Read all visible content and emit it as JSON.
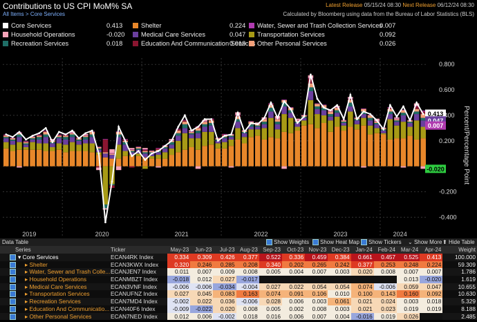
{
  "header": {
    "title": "Contributions to US CPI MoM% SA",
    "breadcrumb_root": "All Items",
    "breadcrumb_sep": ">",
    "breadcrumb_leaf": "Core Services",
    "latest_label": "Latest Release",
    "latest_value": "05/15/24 08:30",
    "next_label": "Next Release",
    "next_value": "06/12/24 08:30",
    "calc_note": "Calculated by Bloomberg using data from the Bureau of Labor Statistics (BLS)"
  },
  "colors": {
    "core": "#ffffff",
    "shelter": "#e8872a",
    "water": "#b03bb0",
    "household": "#f6a3b8",
    "medical": "#6a3f9e",
    "transport": "#a79a16",
    "recreation": "#1f6e66",
    "education": "#8a1530",
    "personal": "#f3a07a",
    "callout_green": "#2ecc40"
  },
  "legend": [
    {
      "label": "Core Services",
      "value": "0.413",
      "color": "#ffffff"
    },
    {
      "label": "Shelter",
      "value": "0.224",
      "color": "#e8872a"
    },
    {
      "label": "Water, Sewer and Trash Collection Services",
      "value": "0.007",
      "color": "#b03bb0"
    },
    {
      "label": "Household Operations",
      "value": "-0.020",
      "color": "#f6a3b8"
    },
    {
      "label": "Medical Care Services",
      "value": "0.047",
      "color": "#6a3f9e"
    },
    {
      "label": "Transportation Services",
      "value": "0.092",
      "color": "#a79a16"
    },
    {
      "label": "Recreation Services",
      "value": "0.018",
      "color": "#1f6e66"
    },
    {
      "label": "Education And Communication Services",
      "value": "0.019",
      "color": "#8a1530"
    },
    {
      "label": "Other Personal Services",
      "value": "0.026",
      "color": "#f3a07a"
    }
  ],
  "chart_data": {
    "type": "bar",
    "stacked": true,
    "ylabel": "Percent/Percentage Point",
    "ylim": [
      -0.55,
      0.85
    ],
    "yticks": [
      "0.800",
      "0.600",
      "0.400",
      "0.200",
      "-0.200",
      "-0.400"
    ],
    "year_labels": [
      "2019",
      "2020",
      "2021",
      "2022",
      "2023",
      "2024"
    ],
    "callouts": [
      "0.413",
      "0.047",
      "0.007",
      "-0.020"
    ],
    "n_bars": 64,
    "core_line": [
      0.25,
      0.23,
      0.27,
      0.21,
      0.24,
      0.26,
      0.3,
      0.19,
      0.27,
      0.25,
      0.28,
      0.22,
      0.26,
      0.28,
      0.1,
      -0.44,
      -0.12,
      0.31,
      0.2,
      0.08,
      0.12,
      0.05,
      0.1,
      0.12,
      0.16,
      0.2,
      0.31,
      0.4,
      0.28,
      0.31,
      0.37,
      0.37,
      0.2,
      0.24,
      0.25,
      0.42,
      0.27,
      0.34,
      0.33,
      0.38,
      0.5,
      0.38,
      0.51,
      0.45,
      0.34,
      0.39,
      0.72,
      0.53,
      0.46,
      0.44,
      0.48,
      0.37,
      0.56,
      0.37,
      0.43,
      0.41,
      0.36,
      0.29,
      0.48,
      0.39,
      0.47,
      0.36,
      0.5,
      0.41
    ],
    "shelter": [
      0.14,
      0.12,
      0.13,
      0.13,
      0.13,
      0.13,
      0.12,
      0.12,
      0.13,
      0.11,
      0.12,
      0.12,
      0.12,
      0.11,
      0.09,
      0.07,
      0.06,
      0.06,
      0.08,
      0.08,
      0.08,
      0.07,
      0.06,
      0.06,
      0.06,
      0.09,
      0.11,
      0.13,
      0.15,
      0.13,
      0.16,
      0.17,
      0.14,
      0.14,
      0.16,
      0.21,
      0.18,
      0.23,
      0.24,
      0.21,
      0.23,
      0.22,
      0.27,
      0.26,
      0.28,
      0.32,
      0.33,
      0.3,
      0.34,
      0.27,
      0.31,
      0.28,
      0.31,
      0.29,
      0.32,
      0.25,
      0.26,
      0.25,
      0.21,
      0.22,
      0.22,
      0.24,
      0.21,
      0.22
    ],
    "transport": [
      0.05,
      0.05,
      0.06,
      0.02,
      0.06,
      0.05,
      0.06,
      0.03,
      0.05,
      0.06,
      0.07,
      0.05,
      0.06,
      0.07,
      0.02,
      -0.3,
      -0.14,
      0.11,
      0.04,
      0.01,
      0.02,
      -0.02,
      0.02,
      0.03,
      0.05,
      0.05,
      0.09,
      0.13,
      0.07,
      0.09,
      0.11,
      0.1,
      0.04,
      0.05,
      0.05,
      0.09,
      0.05,
      0.06,
      0.05,
      0.09,
      0.15,
      0.07,
      0.14,
      0.12,
      0.03,
      0.04,
      0.19,
      0.11,
      0.06,
      0.09,
      0.08,
      0.04,
      0.12,
      0.04,
      0.06,
      0.07,
      0.04,
      0.01,
      0.16,
      0.1,
      0.13,
      0.07,
      0.15,
      0.09
    ],
    "medical": [
      0.03,
      0.03,
      0.04,
      0.02,
      0.02,
      0.03,
      0.05,
      0.03,
      0.04,
      0.04,
      0.04,
      0.03,
      0.03,
      0.05,
      0.02,
      0.03,
      0.03,
      0.06,
      0.05,
      0.02,
      0.03,
      0.03,
      0.02,
      0.02,
      0.03,
      0.03,
      0.04,
      0.04,
      0.03,
      0.04,
      0.04,
      0.05,
      0.02,
      0.03,
      0.02,
      0.05,
      0.03,
      0.02,
      0.02,
      0.03,
      0.05,
      0.04,
      0.06,
      0.04,
      0.03,
      0.02,
      0.07,
      0.04,
      0.04,
      0.03,
      0.03,
      0.02,
      0.04,
      0.03,
      0.03,
      0.04,
      0.03,
      0.02,
      0.04,
      0.03,
      0.05,
      0.03,
      0.05,
      0.05
    ],
    "recreation": [
      0.01,
      0.01,
      0.02,
      0.01,
      0.01,
      0.02,
      0.02,
      0.01,
      0.01,
      0.02,
      0.02,
      0.01,
      0.02,
      0.02,
      0.01,
      -0.03,
      -0.01,
      0.02,
      0.02,
      0.01,
      0.01,
      0.01,
      0.01,
      0.01,
      0.01,
      0.02,
      0.02,
      0.03,
      0.01,
      0.02,
      0.02,
      0.02,
      0.01,
      0.01,
      0.01,
      0.02,
      0.01,
      0.02,
      0.01,
      0.02,
      0.03,
      0.02,
      0.03,
      0.02,
      0.01,
      0.01,
      0.03,
      0.02,
      0.02,
      0.02,
      0.02,
      0.01,
      0.03,
      0.01,
      0.02,
      0.02,
      0.01,
      0.01,
      0.02,
      0.01,
      0.02,
      0.01,
      0.02,
      0.02
    ],
    "personal": [
      0.01,
      0.01,
      0.01,
      0.01,
      0.01,
      0.01,
      0.02,
      0.01,
      0.01,
      0.01,
      0.01,
      0.01,
      0.01,
      0.02,
      0.01,
      0.01,
      0.01,
      0.02,
      0.01,
      0.01,
      0.01,
      0.01,
      0.01,
      0.01,
      0.01,
      0.01,
      0.02,
      0.02,
      0.01,
      0.02,
      0.02,
      0.02,
      0.01,
      0.01,
      0.01,
      0.02,
      0.01,
      0.02,
      0.01,
      0.02,
      0.02,
      0.02,
      0.02,
      0.02,
      0.01,
      0.01,
      0.03,
      0.02,
      0.02,
      0.02,
      0.02,
      0.01,
      0.02,
      0.01,
      0.02,
      0.02,
      0.01,
      0.01,
      0.02,
      0.01,
      0.02,
      0.01,
      0.02,
      0.03
    ],
    "education": [
      0.005,
      0.0,
      0.005,
      0.005,
      0.0,
      0.005,
      0.005,
      0.0,
      0.005,
      0.005,
      0.0,
      0.005,
      0.0,
      0.0,
      -0.01,
      0.1,
      -0.02,
      0.0,
      0.01,
      -0.01,
      0.0,
      0.01,
      0.0,
      0.01,
      0.0,
      0.0,
      0.01,
      0.01,
      0.0,
      0.01,
      0.0,
      0.01,
      0.0,
      0.01,
      0.0,
      0.01,
      0.0,
      0.0,
      0.0,
      0.0,
      0.01,
      0.0,
      0.0,
      0.0,
      0.0,
      0.0,
      0.04,
      0.0,
      0.0,
      0.0,
      0.0,
      0.0,
      0.01,
      0.0,
      0.0,
      0.0,
      0.0,
      0.0,
      0.01,
      0.0,
      0.0,
      0.0,
      0.02,
      0.02
    ],
    "water": [
      0.004,
      0.004,
      0.004,
      0.004,
      0.004,
      0.004,
      0.004,
      0.004,
      0.004,
      0.004,
      0.004,
      0.004,
      0.004,
      0.004,
      0.004,
      0.004,
      0.004,
      0.004,
      0.004,
      0.004,
      0.004,
      0.004,
      0.004,
      0.004,
      0.004,
      0.004,
      0.004,
      0.004,
      0.004,
      0.004,
      0.004,
      0.004,
      0.004,
      0.004,
      0.004,
      0.004,
      0.004,
      0.004,
      0.004,
      0.004,
      0.004,
      0.004,
      0.004,
      0.004,
      0.004,
      0.004,
      0.004,
      0.004,
      0.004,
      0.004,
      0.004,
      0.004,
      0.004,
      0.004,
      0.004,
      0.004,
      0.004,
      0.004,
      0.004,
      0.004,
      0.004,
      0.004,
      0.004,
      0.007
    ],
    "household": [
      0.0,
      0.0,
      -0.01,
      0.0,
      0.0,
      0.0,
      0.0,
      0.01,
      0.0,
      0.0,
      0.01,
      0.0,
      0.01,
      0.0,
      -0.02,
      -0.01,
      0.03,
      -0.03,
      0.0,
      0.01,
      0.0,
      0.01,
      0.0,
      -0.01,
      0.0,
      0.01,
      0.0,
      0.0,
      0.01,
      -0.02,
      0.01,
      0.0,
      0.0,
      0.0,
      -0.01,
      0.02,
      0.0,
      0.0,
      0.01,
      0.01,
      0.0,
      0.02,
      -0.02,
      0.0,
      0.01,
      0.0,
      0.02,
      0.0,
      0.0,
      0.01,
      0.01,
      0.0,
      0.01,
      0.0,
      -0.01,
      0.0,
      0.02,
      0.0,
      0.0,
      0.01,
      -0.01,
      0.0,
      0.02,
      -0.02
    ]
  },
  "table": {
    "title": "Data Table",
    "show_weights": "Show Weights",
    "show_heatmap": "Show Heat Map",
    "show_tickers": "Show Tickers",
    "show_more": "Show More",
    "hide_table": "Hide Table",
    "col_series": "Series",
    "col_ticker": "Ticker",
    "months": [
      "May-23",
      "Jun-23",
      "Jul-23",
      "Aug-23",
      "Sep-23",
      "Oct-23",
      "Nov-23",
      "Dec-23",
      "Jan-24",
      "Feb-24",
      "Mar-24",
      "Apr-24"
    ],
    "col_weight": "Weight",
    "rows": [
      {
        "name": "Core Services",
        "ticker": "ECAN4RK Index",
        "weight": "100.000",
        "vals": [
          "0.334",
          "0.309",
          "0.426",
          "0.377",
          "0.522",
          "0.336",
          "0.459",
          "0.384",
          "0.661",
          "0.457",
          "0.525",
          "0.413"
        ]
      },
      {
        "name": "Shelter",
        "ticker": "ECAN3KWX Index",
        "weight": "59.309",
        "vals": [
          "0.320",
          "0.246",
          "0.285",
          "0.208",
          "0.340",
          "0.202",
          "0.265",
          "0.242",
          "0.377",
          "0.253",
          "0.248",
          "0.224"
        ]
      },
      {
        "name": "Water, Sewer and Trash Colle...",
        "ticker": "ECANJEN7 Index",
        "weight": "1.786",
        "vals": [
          "0.011",
          "0.007",
          "0.009",
          "0.008",
          "0.005",
          "0.004",
          "0.007",
          "0.003",
          "0.020",
          "0.008",
          "0.007",
          "0.007"
        ]
      },
      {
        "name": "Household Operations",
        "ticker": "ECANMBZT Index",
        "weight": "1.619",
        "vals": [
          "-0.018",
          "0.012",
          "0.027",
          "-0.017",
          "",
          "",
          "",
          "",
          "",
          "",
          "0.013",
          "-0.020"
        ]
      },
      {
        "name": "Medical Care Services",
        "ticker": "ECAN3VNF Index",
        "weight": "10.655",
        "vals": [
          "-0.006",
          "-0.006",
          "-0.034",
          "-0.004",
          "0.027",
          "0.022",
          "0.054",
          "0.054",
          "0.074",
          "-0.006",
          "0.059",
          "0.047"
        ]
      },
      {
        "name": "Transportation Services",
        "ticker": "ECANUFNZ Index",
        "weight": "10.630",
        "vals": [
          "0.027",
          "0.045",
          "0.083",
          "0.163",
          "0.074",
          "0.091",
          "0.106",
          "0.010",
          "0.100",
          "0.143",
          "0.160",
          "0.092"
        ]
      },
      {
        "name": "Recreation Services",
        "ticker": "ECAN7MD4 Index",
        "weight": "5.329",
        "vals": [
          "-0.002",
          "0.022",
          "0.036",
          "-0.006",
          "0.028",
          "0.006",
          "0.003",
          "0.061",
          "0.021",
          "0.024",
          "0.003",
          "0.018"
        ]
      },
      {
        "name": "Education And Communicatio...",
        "ticker": "ECAN40F6 Index",
        "weight": "8.188",
        "vals": [
          "-0.009",
          "-0.022",
          "0.020",
          "0.008",
          "0.005",
          "0.002",
          "0.008",
          "0.003",
          "0.021",
          "0.023",
          "0.019",
          "0.019"
        ]
      },
      {
        "name": "Other Personal Services",
        "ticker": "ECAN7NED Index",
        "weight": "2.485",
        "vals": [
          "0.012",
          "0.006",
          "-0.002",
          "0.018",
          "0.016",
          "0.006",
          "0.007",
          "0.004",
          "-0.016",
          "0.019",
          "0.026",
          ""
        ]
      }
    ]
  }
}
